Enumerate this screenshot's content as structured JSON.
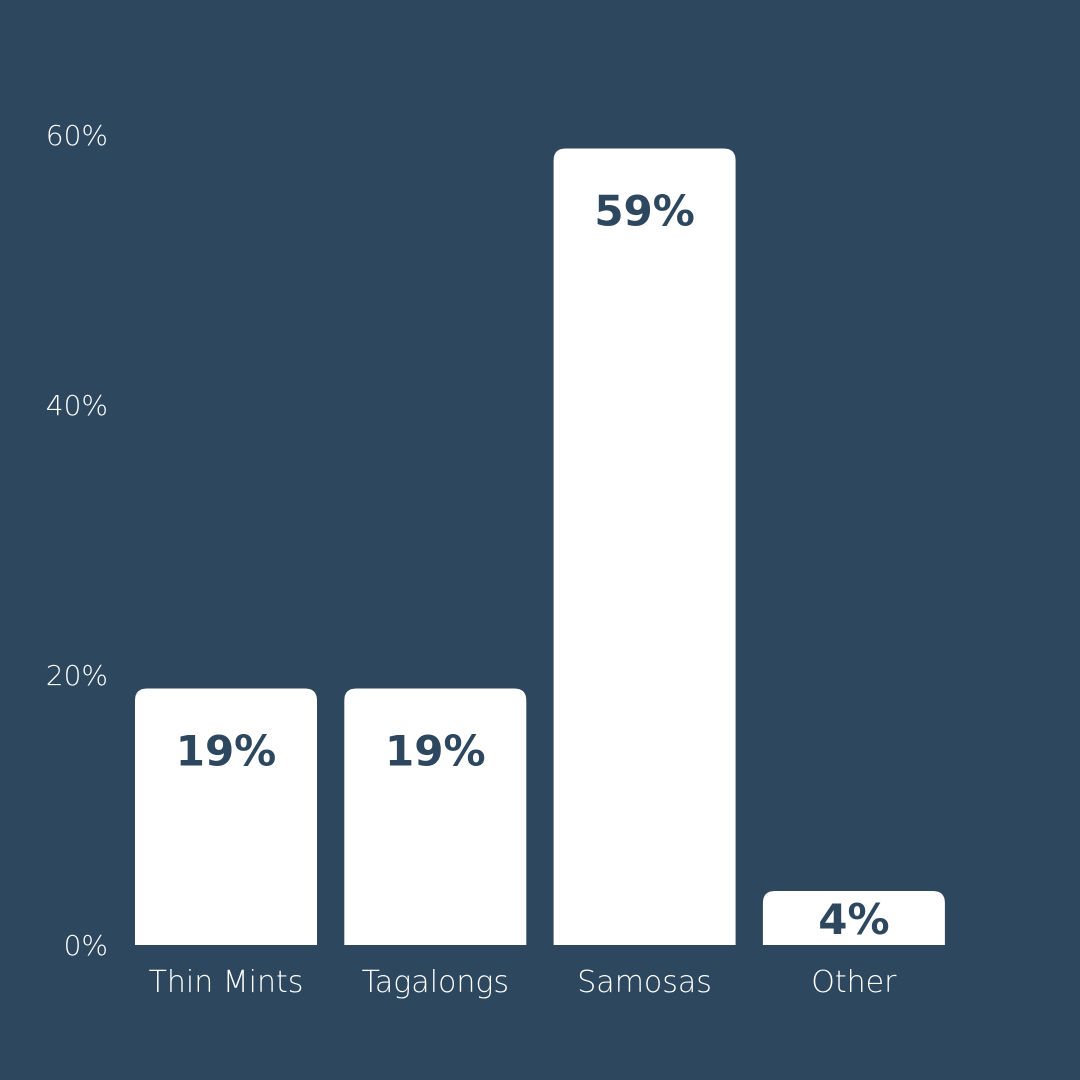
{
  "chart_data": {
    "type": "bar",
    "title": "",
    "xlabel": "",
    "ylabel": "",
    "categories": [
      "Thin Mints",
      "Tagalongs",
      "Samosas",
      "Other"
    ],
    "values": [
      19,
      19,
      59,
      4
    ],
    "data_labels": [
      "19%",
      "19%",
      "59%",
      "4%"
    ],
    "ylim": [
      0,
      60
    ],
    "yticks": [
      0,
      20,
      40,
      60
    ],
    "ytick_labels": [
      "0%",
      "20%",
      "40%",
      "60%"
    ],
    "grid": false,
    "legend": "none",
    "colors": {
      "background": "#2c475e",
      "bar": "#ffffff",
      "data_label": "#2c475e",
      "text": "#ffffff"
    }
  }
}
